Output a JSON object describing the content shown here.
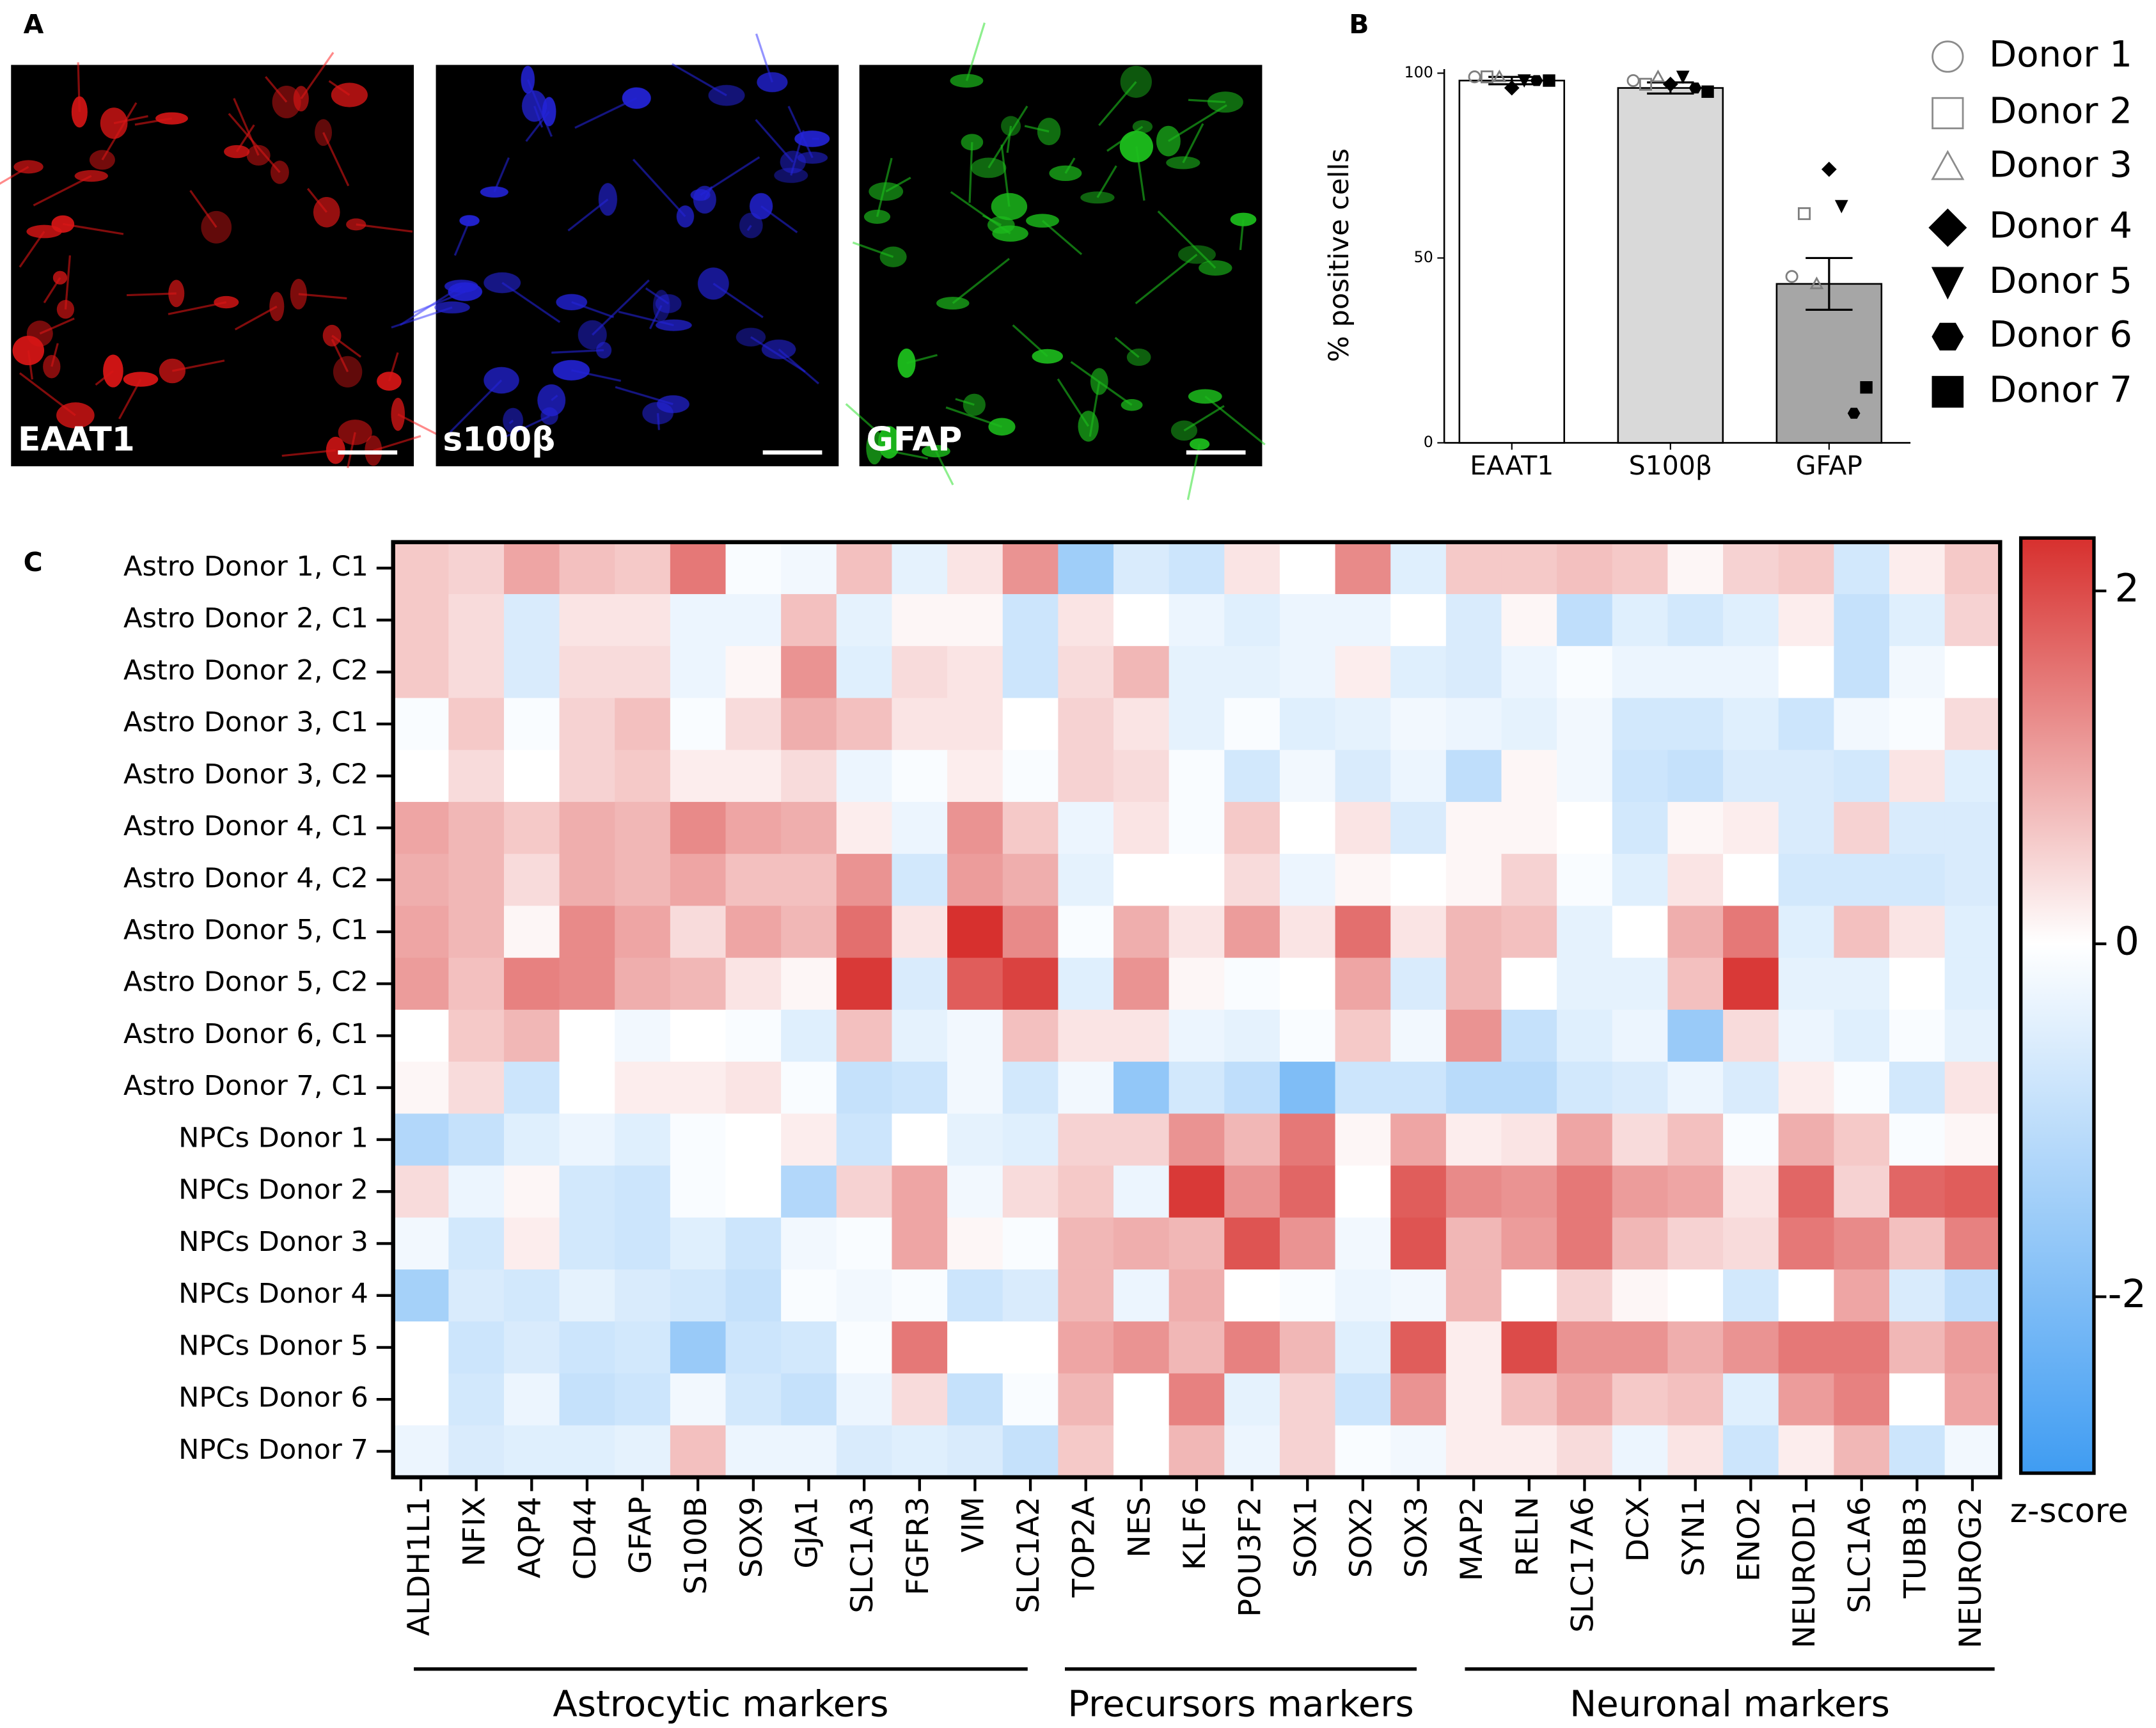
{
  "panel_labels": [
    "A",
    "B",
    "C"
  ],
  "images": [
    {
      "label": "EAAT1",
      "color": "#ff1a1a"
    },
    {
      "label": "s100β",
      "color": "#2a2aff"
    },
    {
      "label": "GFAP",
      "color": "#22e022"
    }
  ],
  "chart_data": [
    {
      "type": "bar",
      "y_label": "% positive cells",
      "categories": [
        "EAAT1",
        "S100β",
        "GFAP"
      ],
      "values": [
        98,
        96,
        43
      ],
      "errors": [
        1,
        1.5,
        7
      ],
      "colors": [
        "#ffffff",
        "#d9d9d9",
        "#a6a6a6"
      ],
      "ylim": [
        0,
        100
      ],
      "yticks": [
        0,
        50,
        100
      ],
      "series": [
        {
          "name": "Donor 1",
          "marker": "circle-open",
          "color": "#7f7f7f",
          "values": [
            99,
            98,
            45
          ]
        },
        {
          "name": "Donor 2",
          "marker": "square-open",
          "color": "#7f7f7f",
          "values": [
            99,
            97,
            62
          ]
        },
        {
          "name": "Donor 3",
          "marker": "triangle-open",
          "color": "#7f7f7f",
          "values": [
            99,
            99,
            43
          ]
        },
        {
          "name": "Donor 4",
          "marker": "diamond",
          "color": "#000000",
          "values": [
            96,
            97,
            74
          ]
        },
        {
          "name": "Donor 5",
          "marker": "triangle-down",
          "color": "#000000",
          "values": [
            98,
            99,
            64
          ]
        },
        {
          "name": "Donor 6",
          "marker": "hexagon",
          "color": "#000000",
          "values": [
            98,
            96,
            8
          ]
        },
        {
          "name": "Donor 7",
          "marker": "square",
          "color": "#000000",
          "values": [
            98,
            95,
            15
          ]
        }
      ]
    },
    {
      "type": "heatmap",
      "colorbar_label": "z-score",
      "rows": [
        "Astro Donor 1, C1",
        "Astro Donor 2, C1",
        "Astro Donor 2, C2",
        "Astro Donor 3, C1",
        "Astro Donor 3, C2",
        "Astro Donor 4, C1",
        "Astro Donor 4, C2",
        "Astro Donor 5, C1",
        "Astro Donor 5, C2",
        "Astro Donor 6, C1",
        "Astro Donor 7, C1",
        "NPCs Donor 1",
        "NPCs Donor 2",
        "NPCs Donor 3",
        "NPCs Donor 4",
        "NPCs Donor 5",
        "NPCs Donor 6",
        "NPCs Donor 7"
      ],
      "categories": [
        "ALDH1L1",
        "NFIX",
        "AQP4",
        "CD44",
        "GFAP",
        "S100B",
        "SOX9",
        "GJA1",
        "SLC1A3",
        "FGFR3",
        "VIM",
        "SLC1A2",
        "TOP2A",
        "NES",
        "KLF6",
        "POU3F2",
        "SOX1",
        "SOX2",
        "SOX3",
        "MAP2",
        "RELN",
        "SLC17A6",
        "DCX",
        "SYN1",
        "ENO2",
        "NEUROD1",
        "SLC1A6",
        "TUBB3",
        "NEUROG2"
      ],
      "groups": [
        "Astrocytic markers",
        "Precursors markers",
        "Neuronal markers"
      ],
      "zlim": [
        -3,
        2.3
      ],
      "zticks": [
        2,
        0,
        -2
      ],
      "colorscale": [
        "#3f9cf2",
        "#ffffff",
        "#d7302e"
      ],
      "values": [
        [
          0.6,
          0.5,
          1.0,
          0.7,
          0.6,
          1.5,
          -0.1,
          -0.2,
          0.7,
          -0.4,
          0.3,
          1.2,
          -1.5,
          -0.6,
          -0.8,
          0.3,
          0,
          1.3,
          -0.5,
          0.6,
          0.6,
          0.7,
          0.6,
          0.1,
          0.5,
          0.6,
          -0.7,
          0.2,
          0.6
        ],
        [
          0.6,
          0.4,
          -0.6,
          0.3,
          0.3,
          -0.3,
          -0.3,
          0.7,
          -0.4,
          0.1,
          0.1,
          -0.8,
          0.3,
          0,
          -0.3,
          -0.5,
          -0.3,
          -0.3,
          0,
          -0.6,
          0.1,
          -1.0,
          -0.5,
          -0.7,
          -0.5,
          0.2,
          -0.9,
          -0.5,
          0.5
        ],
        [
          0.6,
          0.4,
          -0.6,
          0.4,
          0.4,
          -0.3,
          0.1,
          1.2,
          -0.5,
          0.4,
          0.3,
          -0.8,
          0.4,
          0.8,
          -0.4,
          -0.4,
          -0.3,
          0.2,
          -0.5,
          -0.6,
          -0.3,
          -0.1,
          -0.3,
          -0.3,
          -0.3,
          0,
          -0.9,
          -0.2,
          0
        ],
        [
          -0.1,
          0.6,
          -0.1,
          0.5,
          0.7,
          -0.1,
          0.4,
          0.9,
          0.7,
          0.3,
          0.3,
          0,
          0.5,
          0.3,
          -0.4,
          -0.1,
          -0.5,
          -0.4,
          -0.2,
          -0.3,
          -0.4,
          -0.2,
          -0.7,
          -0.7,
          -0.5,
          -0.8,
          -0.2,
          -0.1,
          0.4
        ],
        [
          0,
          0.4,
          0,
          0.5,
          0.6,
          0.2,
          0.2,
          0.4,
          -0.3,
          -0.1,
          0.2,
          -0.1,
          0.5,
          0.4,
          -0.1,
          -0.7,
          -0.2,
          -0.6,
          -0.3,
          -1.0,
          0.1,
          -0.2,
          -0.8,
          -0.9,
          -0.6,
          -0.6,
          -0.7,
          0.3,
          -0.5
        ],
        [
          1.0,
          0.8,
          0.6,
          0.9,
          0.8,
          1.3,
          1.0,
          0.9,
          0.2,
          -0.3,
          1.2,
          0.6,
          -0.3,
          0.3,
          -0.1,
          0.6,
          0,
          0.3,
          -0.6,
          0.1,
          0.1,
          0,
          -0.7,
          0.1,
          0.2,
          -0.6,
          0.5,
          -0.6,
          -0.6
        ],
        [
          0.9,
          0.8,
          0.4,
          0.9,
          0.8,
          1.0,
          0.7,
          0.7,
          1.2,
          -0.7,
          1.1,
          0.9,
          -0.4,
          0,
          0,
          0.4,
          -0.3,
          0.1,
          0,
          0.1,
          0.5,
          -0.1,
          -0.5,
          0.3,
          0,
          -0.7,
          -0.7,
          -0.7,
          -0.6
        ],
        [
          1.0,
          0.8,
          0.1,
          1.3,
          1.0,
          0.4,
          1.0,
          0.8,
          1.6,
          0.3,
          2.3,
          1.3,
          -0.1,
          0.9,
          0.3,
          1.1,
          0.3,
          1.6,
          0.3,
          0.8,
          0.7,
          -0.4,
          0,
          0.9,
          1.5,
          -0.5,
          0.7,
          0.3,
          -0.5
        ],
        [
          1.1,
          0.7,
          1.4,
          1.3,
          0.9,
          0.8,
          0.3,
          0.1,
          2.2,
          -0.6,
          1.8,
          2.1,
          -0.5,
          1.2,
          0.1,
          -0.1,
          0,
          1.0,
          -0.6,
          0.8,
          0,
          -0.4,
          -0.4,
          0.7,
          2.2,
          -0.4,
          -0.4,
          0,
          -0.5
        ],
        [
          0,
          0.6,
          0.8,
          0,
          -0.2,
          0,
          -0.1,
          -0.5,
          0.7,
          -0.4,
          -0.2,
          0.7,
          0.3,
          0.3,
          -0.3,
          -0.4,
          -0.1,
          0.6,
          -0.2,
          1.2,
          -0.9,
          -0.5,
          -0.3,
          -1.6,
          0.4,
          -0.3,
          -0.5,
          -0.1,
          -0.4
        ],
        [
          0.1,
          0.4,
          -0.8,
          0,
          0.2,
          0.2,
          0.3,
          -0.1,
          -0.9,
          -0.8,
          -0.2,
          -0.7,
          -0.2,
          -1.7,
          -0.7,
          -1.0,
          -2.0,
          -0.8,
          -0.8,
          -1.1,
          -1.1,
          -0.7,
          -0.6,
          -0.3,
          -0.6,
          0.2,
          -0.1,
          -0.7,
          0.3
        ],
        [
          -1.2,
          -0.9,
          -0.5,
          -0.3,
          -0.5,
          -0.1,
          0,
          0.2,
          -0.8,
          0,
          -0.4,
          -0.5,
          0.5,
          0.5,
          1.2,
          0.8,
          1.5,
          0.1,
          1.0,
          0.2,
          0.3,
          1.0,
          0.4,
          0.7,
          -0.1,
          0.9,
          0.6,
          -0.1,
          0.1
        ],
        [
          0.4,
          -0.3,
          0.1,
          -0.7,
          -0.8,
          -0.1,
          0,
          -1.2,
          0.5,
          1.0,
          -0.2,
          0.4,
          0.6,
          -0.3,
          2.2,
          1.2,
          1.7,
          0,
          1.8,
          1.3,
          1.2,
          1.5,
          1.1,
          1.0,
          0.3,
          1.7,
          0.5,
          1.7,
          1.8
        ],
        [
          -0.2,
          -0.7,
          0.2,
          -0.7,
          -0.8,
          -0.5,
          -0.8,
          -0.2,
          -0.1,
          1.0,
          0.1,
          -0.1,
          0.8,
          0.9,
          0.8,
          1.9,
          1.2,
          -0.2,
          1.9,
          0.8,
          1.1,
          1.5,
          0.8,
          0.5,
          0.4,
          1.5,
          1.3,
          0.7,
          1.4
        ],
        [
          -1.4,
          -0.6,
          -0.7,
          -0.4,
          -0.6,
          -0.7,
          -0.9,
          -0.1,
          -0.2,
          -0.1,
          -0.8,
          -0.6,
          0.8,
          -0.3,
          0.9,
          0,
          -0.1,
          -0.3,
          -0.2,
          0.8,
          0,
          0.5,
          0.1,
          0,
          -0.7,
          0,
          1.0,
          -0.6,
          -1.0
        ],
        [
          0,
          -0.8,
          -0.6,
          -0.8,
          -0.7,
          -1.6,
          -0.8,
          -0.7,
          -0.1,
          1.5,
          0,
          0,
          1.0,
          1.2,
          0.8,
          1.4,
          0.8,
          -0.5,
          1.8,
          0.2,
          2.0,
          1.2,
          1.2,
          0.9,
          1.2,
          1.5,
          1.5,
          0.8,
          1.1
        ],
        [
          0,
          -0.7,
          -0.3,
          -0.9,
          -0.8,
          -0.2,
          -0.7,
          -0.9,
          -0.3,
          0.4,
          -0.9,
          -0.1,
          0.8,
          0,
          1.4,
          -0.4,
          0.5,
          -0.8,
          1.2,
          0.2,
          0.7,
          1.0,
          0.6,
          0.7,
          -0.5,
          1.1,
          1.4,
          0,
          1.0
        ],
        [
          -0.3,
          -0.6,
          -0.5,
          -0.5,
          -0.4,
          0.7,
          -0.3,
          -0.3,
          -0.6,
          -0.5,
          -0.6,
          -0.9,
          0.6,
          0,
          0.8,
          -0.3,
          0.5,
          -0.1,
          -0.2,
          0.2,
          0.2,
          0.4,
          -0.3,
          0.3,
          -0.8,
          0.2,
          0.8,
          -0.8,
          -0.2
        ]
      ]
    }
  ]
}
